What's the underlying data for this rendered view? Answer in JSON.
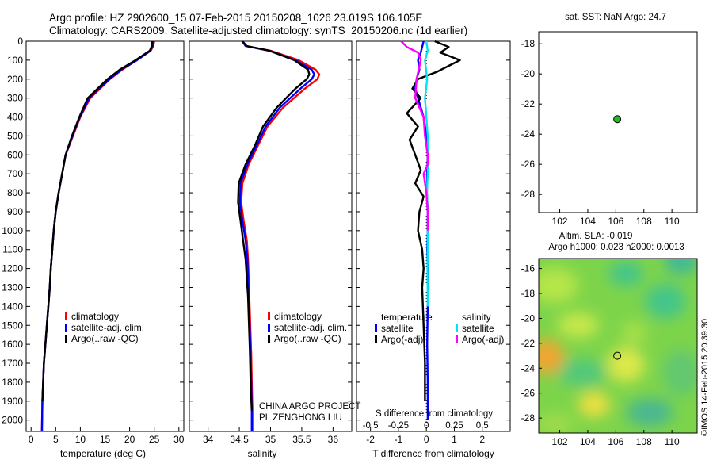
{
  "header": {
    "line1": "Argo profile: HZ 2902600_15 07-Feb-2015 20150208_1026 23.019S 106.105E",
    "line2": "Climatology: CARS2009. Satellite-adjusted climatology: synTS_20150206.nc (1d earlier)"
  },
  "watermark": "©IMOS 14-Feb-2015 20:39:30",
  "credits": {
    "line1": "CHINA ARGO PROJECT",
    "line2": "PI: ZENGHONG LIU"
  },
  "colors": {
    "climatology": "#ff0000",
    "satellite": "#0000ff",
    "argo": "#000000",
    "salinity_satellite": "#00e5ee",
    "salinity_argo": "#ff00ff",
    "map_point": "#22bb22"
  },
  "chart_data": [
    {
      "id": "temperature",
      "type": "line",
      "xlabel": "temperature (deg C)",
      "ylabel": "",
      "xlim": [
        -1,
        31
      ],
      "ylim": [
        2060,
        0
      ],
      "xticks": [
        0,
        5,
        10,
        15,
        20,
        25,
        30
      ],
      "xtick_labels": [
        "0",
        "5",
        "10",
        "15",
        "20",
        "25",
        "30"
      ],
      "yticks": [
        0,
        100,
        200,
        300,
        400,
        500,
        600,
        700,
        800,
        900,
        1000,
        1100,
        1200,
        1300,
        1400,
        1500,
        1600,
        1700,
        1800,
        1900,
        2000
      ],
      "ytick_labels": [
        "0",
        "100",
        "200",
        "300",
        "400",
        "500",
        "600",
        "700",
        "800",
        "900",
        "1000",
        "1100",
        "1200",
        "1300",
        "1400",
        "1500",
        "1600",
        "1700",
        "1800",
        "1900",
        "2000"
      ],
      "legend": [
        "climatology",
        "satellite-adj. clim.",
        "Argo(..raw -QC)"
      ],
      "series": [
        {
          "name": "climatology",
          "color": "#ff0000",
          "x": [
            25,
            24.8,
            24.3,
            21.5,
            18.5,
            16,
            14,
            12,
            10,
            8.5,
            7,
            6.3,
            5.6,
            5,
            4.6,
            4.3,
            4.0,
            3.8,
            3.5,
            3.2,
            2.9,
            2.6,
            2.3,
            2.2
          ],
          "y": [
            0,
            25,
            50,
            100,
            150,
            200,
            250,
            300,
            400,
            500,
            600,
            700,
            800,
            900,
            1000,
            1100,
            1200,
            1300,
            1400,
            1500,
            1600,
            1700,
            1900,
            2060
          ]
        },
        {
          "name": "satellite-adj. clim.",
          "color": "#0000ff",
          "x": [
            24.9,
            24.7,
            24.2,
            21.5,
            18.3,
            15.9,
            13.8,
            11.8,
            9.9,
            8.4,
            7,
            6.3,
            5.6,
            5,
            4.6,
            4.3,
            4.0,
            3.8,
            3.5,
            3.2,
            2.9,
            2.6,
            2.3,
            2.2
          ],
          "y": [
            0,
            25,
            50,
            100,
            150,
            200,
            250,
            300,
            400,
            500,
            600,
            700,
            800,
            900,
            1000,
            1100,
            1200,
            1300,
            1400,
            1500,
            1600,
            1700,
            1900,
            2060
          ]
        },
        {
          "name": "Argo(..raw -QC)",
          "color": "#000000",
          "x": [
            24.6,
            24.5,
            24.1,
            21.2,
            18,
            15.5,
            13.5,
            11.5,
            9.8,
            8.3,
            7,
            6.3,
            5.6,
            5.0,
            4.6,
            4.3,
            4.0,
            3.8,
            3.5,
            3.2,
            2.9,
            2.6,
            2.3
          ],
          "y": [
            0,
            25,
            50,
            100,
            150,
            200,
            250,
            300,
            400,
            500,
            600,
            700,
            800,
            900,
            1000,
            1100,
            1200,
            1300,
            1400,
            1500,
            1600,
            1700,
            1900
          ]
        }
      ]
    },
    {
      "id": "salinity",
      "type": "line",
      "xlabel": "salinity",
      "xlim": [
        33.7,
        36.3
      ],
      "ylim": [
        2060,
        0
      ],
      "xticks": [
        34,
        34.5,
        35,
        35.5,
        36
      ],
      "xtick_labels": [
        "34",
        "34.5",
        "35",
        "35.5",
        "36"
      ],
      "legend": [
        "climatology",
        "satellite-adj. clim.",
        "Argo(..raw -QC)"
      ],
      "series": [
        {
          "name": "climatology",
          "color": "#ff0000",
          "x": [
            34.55,
            34.6,
            35.0,
            35.45,
            35.72,
            35.78,
            35.75,
            35.55,
            35.2,
            34.95,
            34.8,
            34.65,
            34.55,
            34.53,
            34.57,
            34.62,
            34.64,
            34.65,
            34.66,
            34.67,
            34.68,
            34.69,
            34.7,
            34.71,
            34.71
          ],
          "y": [
            0,
            25,
            50,
            100,
            150,
            175,
            200,
            250,
            350,
            450,
            550,
            650,
            750,
            850,
            950,
            1050,
            1150,
            1250,
            1350,
            1450,
            1550,
            1650,
            1800,
            1950,
            2060
          ]
        },
        {
          "name": "satellite-adj. clim.",
          "color": "#0000ff",
          "x": [
            34.55,
            34.6,
            34.98,
            35.4,
            35.66,
            35.7,
            35.66,
            35.48,
            35.15,
            34.92,
            34.78,
            34.63,
            34.52,
            34.51,
            34.55,
            34.6,
            34.63,
            34.64,
            34.65,
            34.66,
            34.67,
            34.68,
            34.69,
            34.7,
            34.7
          ],
          "y": [
            0,
            25,
            50,
            100,
            150,
            175,
            200,
            250,
            350,
            450,
            550,
            650,
            750,
            850,
            950,
            1050,
            1150,
            1250,
            1350,
            1450,
            1550,
            1650,
            1800,
            1950,
            2060
          ]
        },
        {
          "name": "Argo(..raw -QC)",
          "color": "#000000",
          "x": [
            34.55,
            34.62,
            34.98,
            35.38,
            35.6,
            35.62,
            35.58,
            35.4,
            35.1,
            34.88,
            34.75,
            34.6,
            34.49,
            34.48,
            34.52,
            34.56,
            34.6,
            34.62,
            34.64,
            34.65,
            34.66,
            34.67,
            34.68,
            34.7
          ],
          "y": [
            0,
            25,
            50,
            100,
            150,
            175,
            200,
            250,
            350,
            450,
            550,
            650,
            750,
            850,
            950,
            1050,
            1150,
            1250,
            1350,
            1450,
            1550,
            1650,
            1800,
            1950
          ]
        }
      ]
    },
    {
      "id": "difference",
      "type": "line",
      "xlabel": "T difference from climatology",
      "top_label": "S difference from climatology",
      "xlim": [
        -2.5,
        3
      ],
      "ylim": [
        2060,
        0
      ],
      "xticks": [
        -2,
        -1,
        0,
        1,
        2
      ],
      "xtick_labels": [
        "-2",
        "-1",
        "0",
        "1",
        "2"
      ],
      "top_ticks": [
        -0.5,
        -0.25,
        0,
        0.25,
        0.5
      ],
      "top_tick_labels": [
        "-0.5",
        "-0.25",
        "0",
        "0.25",
        "0.5"
      ],
      "legend_headers": [
        "temperature",
        "salinity"
      ],
      "legend": [
        "satellite",
        "Argo(-adj)",
        "satellite",
        "Argo(-adj)"
      ],
      "series": [
        {
          "name": "temperature satellite",
          "color": "#0000ff",
          "x": [
            -0.1,
            -0.15,
            -0.2,
            -0.3,
            -0.25,
            -0.35,
            -0.4,
            -0.3,
            -0.1,
            0.0,
            0.05,
            0.03,
            0.02,
            0.05,
            0.05,
            0.03,
            0.05,
            0.08,
            0.05,
            0.03,
            0.05,
            0.05
          ],
          "y": [
            0,
            30,
            60,
            100,
            150,
            200,
            250,
            300,
            400,
            500,
            600,
            700,
            800,
            900,
            1000,
            1100,
            1200,
            1300,
            1400,
            1600,
            1800,
            2000
          ]
        },
        {
          "name": "temperature Argo(-adj)",
          "color": "#000000",
          "x": [
            0.3,
            0.8,
            0.5,
            1.2,
            0.8,
            0.4,
            -0.3,
            -0.5,
            -0.2,
            -0.7,
            -0.3,
            -0.6,
            -0.4,
            -0.2,
            -0.4,
            -0.1,
            -0.25,
            -0.3,
            -0.15,
            -0.1,
            -0.15,
            -0.1,
            -0.05,
            -0.05
          ],
          "y": [
            0,
            30,
            60,
            100,
            130,
            160,
            200,
            250,
            300,
            380,
            450,
            520,
            600,
            680,
            750,
            820,
            900,
            1000,
            1100,
            1200,
            1300,
            1500,
            1700,
            1900
          ]
        },
        {
          "name": "salinity satellite",
          "color": "#00e5ee",
          "x": [
            0,
            0.05,
            -0.05,
            0.03,
            -0.05,
            0.0,
            0.05,
            0.08,
            0.05,
            0.02,
            0.05,
            0.05,
            0.04,
            0.05
          ],
          "y": [
            0,
            50,
            100,
            200,
            300,
            400,
            500,
            600,
            700,
            800,
            900,
            1000,
            1200,
            1400
          ]
        },
        {
          "name": "salinity Argo(-adj)",
          "color": "#ff00ff",
          "x": [
            -0.9,
            -0.7,
            -0.3,
            -0.2,
            -0.35,
            -0.4,
            -0.1,
            -0.05,
            0.05,
            0.05,
            -0.1,
            0.0,
            0.05,
            0.05
          ],
          "y": [
            0,
            30,
            60,
            100,
            200,
            300,
            400,
            500,
            600,
            650,
            700,
            800,
            900,
            1000
          ]
        }
      ]
    },
    {
      "id": "position",
      "type": "scatter",
      "title": "sat. SST: NaN Argo: 24.7",
      "xlim": [
        100.5,
        111.8
      ],
      "ylim": [
        -29.2,
        -17.2
      ],
      "xticks": [
        102,
        104,
        106,
        108,
        110
      ],
      "xtick_labels": [
        "102",
        "104",
        "106",
        "108",
        "110"
      ],
      "yticks": [
        -18,
        -20,
        -22,
        -24,
        -26,
        -28
      ],
      "ytick_labels": [
        "-18",
        "-20",
        "-22",
        "-24",
        "-26",
        "-28"
      ],
      "points": [
        {
          "x": 106.1,
          "y": -23.0
        }
      ]
    },
    {
      "id": "sla",
      "type": "heatmap",
      "title_line1": "Altim. SLA: -0.019",
      "title_line2": "Argo h1000: 0.023 h2000: 0.0013",
      "xlim": [
        100.5,
        111.8
      ],
      "ylim": [
        -29.2,
        -15.2
      ],
      "xticks": [
        102,
        104,
        106,
        108,
        110
      ],
      "xtick_labels": [
        "102",
        "104",
        "106",
        "108",
        "110"
      ],
      "yticks": [
        -16,
        -18,
        -20,
        -22,
        -24,
        -26,
        -28
      ],
      "ytick_labels": [
        "-16",
        "-18",
        "-20",
        "-22",
        "-24",
        "-26",
        "-28"
      ],
      "points": [
        {
          "x": 106.1,
          "y": -23.0
        }
      ]
    }
  ]
}
